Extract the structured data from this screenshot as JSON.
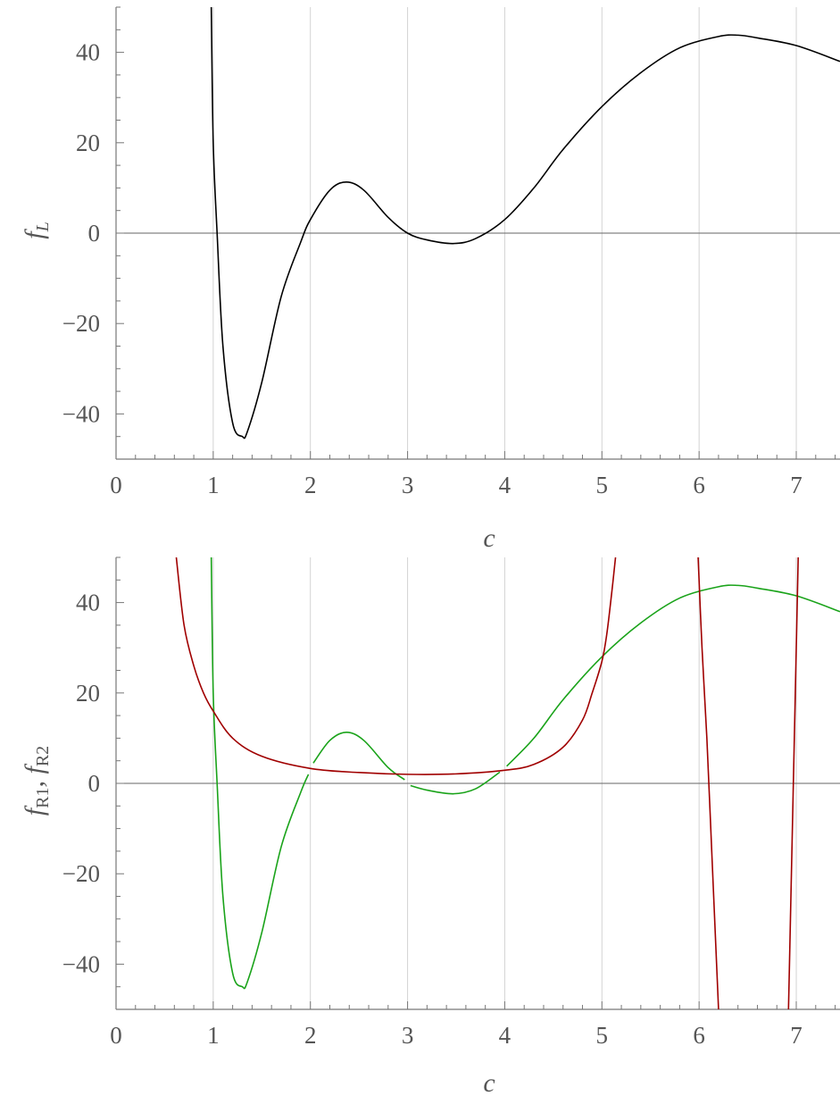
{
  "chart_data": [
    {
      "type": "line",
      "xlabel": "c",
      "ylabel": "f_L",
      "xlim": [
        0,
        7.45
      ],
      "ylim": [
        -50,
        50
      ],
      "x_ticks": [
        0,
        1,
        2,
        3,
        4,
        5,
        6,
        7
      ],
      "y_ticks": [
        -40,
        -20,
        0,
        20,
        40
      ],
      "x_tick_labels": [
        "0",
        "1",
        "2",
        "3",
        "4",
        "5",
        "6",
        "7"
      ],
      "y_tick_labels": [
        "−40",
        "−20",
        "0",
        "20",
        "40"
      ],
      "grid": "vertical",
      "colors": {
        "series": "#000000",
        "grid": "#d3d3d3",
        "axis": "#777777",
        "text": "#555555"
      },
      "series": [
        {
          "x": [
            0.98,
            1.0,
            1.04,
            1.1,
            1.2,
            1.3,
            1.35,
            1.5,
            1.7,
            1.9,
            2.0,
            2.2,
            2.37,
            2.55,
            2.8,
            3.0,
            3.2,
            3.47,
            3.7,
            4.0,
            4.3,
            4.6,
            5.0,
            5.4,
            5.8,
            6.2,
            6.4,
            6.6,
            7.0,
            7.45
          ],
          "y": [
            50,
            20,
            0,
            -25,
            -42,
            -45,
            -44,
            -33,
            -14,
            -2,
            3,
            9.5,
            11.3,
            9.5,
            3.5,
            0,
            -1.5,
            -2.3,
            -1.2,
            3,
            10,
            18.5,
            28,
            35.5,
            41,
            43.5,
            43.8,
            43.2,
            41.5,
            38
          ]
        }
      ]
    },
    {
      "type": "line",
      "xlabel": "c",
      "ylabel": "f_R1, f_R2",
      "xlim": [
        0,
        7.45
      ],
      "ylim": [
        -50,
        50
      ],
      "x_ticks": [
        0,
        1,
        2,
        3,
        4,
        5,
        6,
        7
      ],
      "y_ticks": [
        -40,
        -20,
        0,
        20,
        40
      ],
      "x_tick_labels": [
        "0",
        "1",
        "2",
        "3",
        "4",
        "5",
        "6",
        "7"
      ],
      "y_tick_labels": [
        "−40",
        "−20",
        "0",
        "20",
        "40"
      ],
      "grid": "vertical",
      "colors": {
        "green": "#1aa31a",
        "red": "#a00000",
        "grid": "#d3d3d3",
        "axis": "#777777",
        "text": "#555555"
      },
      "series": [
        {
          "color": "#1aa31a",
          "segments": [
            {
              "x": [
                0.98,
                1.0,
                1.04,
                1.1,
                1.2,
                1.3,
                1.35,
                1.5,
                1.7,
                1.9,
                1.98
              ],
              "y": [
                50,
                20,
                0,
                -25,
                -42,
                -45,
                -44,
                -33,
                -14,
                -2,
                2
              ]
            },
            {
              "x": [
                2.03,
                2.2,
                2.37,
                2.55,
                2.8,
                2.97
              ],
              "y": [
                4.5,
                9.5,
                11.3,
                9.5,
                3.5,
                0.8
              ]
            },
            {
              "x": [
                3.03,
                3.2,
                3.47,
                3.7,
                3.95
              ],
              "y": [
                -0.5,
                -1.5,
                -2.3,
                -1.2,
                2.5
              ]
            },
            {
              "x": [
                4.02,
                4.3,
                4.6,
                5.0,
                5.4,
                5.8,
                6.2,
                6.4,
                6.6,
                7.0,
                7.45
              ],
              "y": [
                3.8,
                10,
                18.5,
                28,
                35.5,
                41,
                43.5,
                43.8,
                43.2,
                41.5,
                38
              ]
            }
          ]
        },
        {
          "color": "#a00000",
          "segments": [
            {
              "x": [
                0.62,
                0.7,
                0.8,
                0.9,
                1.0,
                1.2,
                1.5,
                2.0,
                2.5,
                3.0,
                3.5,
                4.0,
                4.3,
                4.6,
                4.8,
                4.9,
                5.0,
                5.05,
                5.1,
                5.14
              ],
              "y": [
                50,
                35,
                26,
                20,
                16,
                10,
                6,
                3.3,
                2.4,
                2.0,
                2.1,
                2.9,
                4.2,
                8,
                14,
                20,
                27,
                33,
                42,
                50
              ]
            },
            {
              "x": [
                5.99,
                6.03,
                6.08,
                6.13,
                6.18,
                6.2
              ],
              "y": [
                50,
                30,
                10,
                -15,
                -40,
                -50
              ]
            },
            {
              "x": [
                6.92,
                6.94,
                6.96,
                6.98,
                7.0,
                7.02
              ],
              "y": [
                -50,
                -30,
                -10,
                10,
                30,
                50
              ]
            }
          ]
        }
      ]
    }
  ]
}
